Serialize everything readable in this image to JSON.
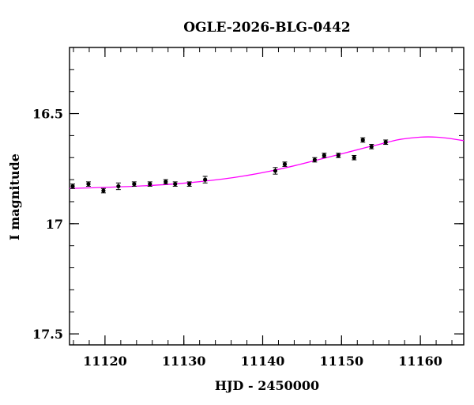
{
  "chart_data": {
    "type": "scatter",
    "title": "OGLE-2026-BLG-0442",
    "xlabel": "HJD - 2450000",
    "ylabel": "I magnitude",
    "xlim": [
      11115.5,
      11165.5
    ],
    "ylim": [
      17.55,
      16.2
    ],
    "y_inverted": true,
    "grid": false,
    "x_major_ticks": [
      11120,
      11130,
      11140,
      11150,
      11160
    ],
    "x_tick_labels": [
      "11120",
      "11130",
      "11140",
      "11150",
      "11160"
    ],
    "x_minor_step": 2,
    "y_major_ticks": [
      16.5,
      17,
      17.5
    ],
    "y_tick_labels": [
      "16.5",
      "17",
      "17.5"
    ],
    "y_minor_step": 0.1,
    "colors": {
      "data": "#000000",
      "model": "#ff00ff"
    },
    "series": [
      {
        "type": "scatter_errorbar",
        "x": [
          11115.9,
          11117.9,
          11119.8,
          11121.7,
          11123.7,
          11125.7,
          11127.7,
          11128.9,
          11130.7,
          11132.7,
          11141.6,
          11142.8,
          11146.6,
          11147.8,
          11149.6,
          11151.6,
          11152.7,
          11153.8,
          11155.6
        ],
        "y": [
          16.83,
          16.82,
          16.85,
          16.83,
          16.82,
          16.82,
          16.81,
          16.82,
          16.82,
          16.8,
          16.76,
          16.73,
          16.71,
          16.69,
          16.69,
          16.7,
          16.62,
          16.65,
          16.63
        ],
        "yerr": [
          0.01,
          0.01,
          0.01,
          0.015,
          0.01,
          0.01,
          0.01,
          0.01,
          0.01,
          0.015,
          0.015,
          0.01,
          0.01,
          0.01,
          0.01,
          0.01,
          0.01,
          0.01,
          0.01
        ]
      },
      {
        "type": "line",
        "x": [
          11115.5,
          11120,
          11125,
          11130,
          11135,
          11138,
          11141,
          11144,
          11147,
          11150,
          11153,
          11155,
          11157,
          11158.5,
          11160,
          11161,
          11162,
          11163.5,
          11165.5
        ],
        "y": [
          16.84,
          16.835,
          16.828,
          16.816,
          16.797,
          16.781,
          16.761,
          16.737,
          16.71,
          16.683,
          16.655,
          16.638,
          16.62,
          16.612,
          16.607,
          16.606,
          16.607,
          16.612,
          16.623
        ]
      }
    ]
  }
}
